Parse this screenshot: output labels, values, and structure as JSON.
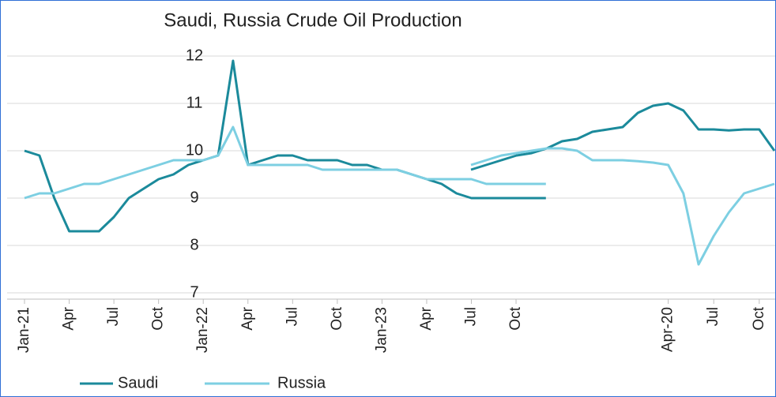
{
  "chart_data": [
    {
      "type": "line",
      "title": "Saudi, Russia Crude Oil Production",
      "categories": [
        "Jan-21",
        null,
        null,
        "Apr",
        null,
        null,
        "Jul",
        null,
        null,
        "Oct",
        null,
        null,
        "Jan-22",
        null,
        null,
        "Apr",
        null,
        null,
        "Jul",
        null,
        null,
        "Oct",
        null,
        null,
        "Jan-23",
        null,
        null,
        "Apr",
        null,
        null,
        "Jul",
        null,
        null,
        "Oct",
        null,
        null
      ],
      "series": [
        {
          "name": "Saudi",
          "color": "#1b8a9b",
          "values": [
            10.0,
            9.9,
            9.0,
            8.3,
            8.3,
            8.3,
            8.6,
            9.0,
            9.2,
            9.4,
            9.5,
            9.7,
            9.8,
            9.9,
            11.9,
            9.7,
            9.8,
            9.9,
            9.9,
            9.8,
            9.8,
            9.8,
            9.7,
            9.7,
            9.6,
            9.6,
            9.5,
            9.4,
            9.3,
            9.1,
            9.0,
            9.0,
            9.0,
            9.0,
            9.0,
            9.0
          ]
        },
        {
          "name": "Russia",
          "color": "#7dcfe2",
          "values": [
            9.0,
            9.1,
            9.1,
            9.2,
            9.3,
            9.3,
            9.4,
            9.5,
            9.6,
            9.7,
            9.8,
            9.8,
            9.8,
            9.9,
            10.5,
            9.7,
            9.7,
            9.7,
            9.7,
            9.7,
            9.6,
            9.6,
            9.6,
            9.6,
            9.6,
            9.6,
            9.5,
            9.4,
            9.4,
            9.4,
            9.4,
            9.3,
            9.3,
            9.3,
            9.3,
            9.3
          ]
        }
      ],
      "ylim": [
        7,
        12
      ],
      "yticks": [
        7,
        8,
        9,
        10,
        11,
        12
      ],
      "grid": true
    },
    {
      "type": "line",
      "categories": [
        null,
        null,
        null,
        null,
        null,
        null,
        null,
        null,
        null,
        null,
        null,
        null,
        null,
        "Apr-20",
        null,
        null,
        "Jul",
        null,
        null,
        "Oct",
        null
      ],
      "series": [
        {
          "name": "Saudi",
          "color": "#1b8a9b",
          "values": [
            9.6,
            9.7,
            9.8,
            9.9,
            9.95,
            10.05,
            10.2,
            10.25,
            10.4,
            10.45,
            10.5,
            10.8,
            10.95,
            11.0,
            10.85,
            10.45,
            10.45,
            10.43,
            10.45,
            10.45,
            10.0
          ]
        },
        {
          "name": "Russia",
          "color": "#7dcfe2",
          "values": [
            9.7,
            9.8,
            9.9,
            9.95,
            10.0,
            10.05,
            10.05,
            10.0,
            9.8,
            9.8,
            9.8,
            9.78,
            9.75,
            9.7,
            9.1,
            7.6,
            8.2,
            8.7,
            9.1,
            9.2,
            9.3
          ]
        }
      ],
      "ylim": [
        7,
        12
      ]
    }
  ]
}
